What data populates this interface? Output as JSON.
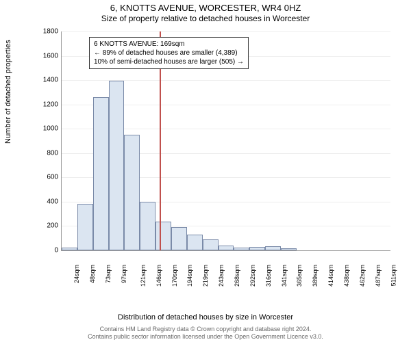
{
  "titles": {
    "line1": "6, KNOTTS AVENUE, WORCESTER, WR4 0HZ",
    "line2": "Size of property relative to detached houses in Worcester"
  },
  "axes": {
    "ylabel": "Number of detached properties",
    "xlabel": "Distribution of detached houses by size in Worcester",
    "ylim": [
      0,
      1800
    ],
    "ytick_step": 200,
    "yticks": [
      0,
      200,
      400,
      600,
      800,
      1000,
      1200,
      1400,
      1600,
      1800
    ],
    "xticks": [
      "24sqm",
      "48sqm",
      "73sqm",
      "97sqm",
      "121sqm",
      "146sqm",
      "170sqm",
      "194sqm",
      "219sqm",
      "243sqm",
      "268sqm",
      "292sqm",
      "316sqm",
      "341sqm",
      "365sqm",
      "389sqm",
      "414sqm",
      "438sqm",
      "462sqm",
      "487sqm",
      "511sqm"
    ]
  },
  "chart": {
    "type": "histogram",
    "bar_fill": "#dbe5f1",
    "bar_border": "#7a8aa8",
    "grid_color": "#eeeeee",
    "background_color": "#ffffff",
    "refline_color": "#c0504d",
    "refline_pos_sqm": 169,
    "values": [
      25,
      380,
      1260,
      1395,
      950,
      400,
      235,
      190,
      130,
      90,
      40,
      25,
      30,
      35,
      15,
      0,
      0,
      0,
      0,
      0,
      0
    ],
    "annotation": {
      "line1": "6 KNOTTS AVENUE: 169sqm",
      "line2": "← 89% of detached houses are smaller (4,389)",
      "line3": "10% of semi-detached houses are larger (505) →"
    }
  },
  "footer": {
    "line1": "Contains HM Land Registry data © Crown copyright and database right 2024.",
    "line2": "Contains public sector information licensed under the Open Government Licence v3.0."
  }
}
